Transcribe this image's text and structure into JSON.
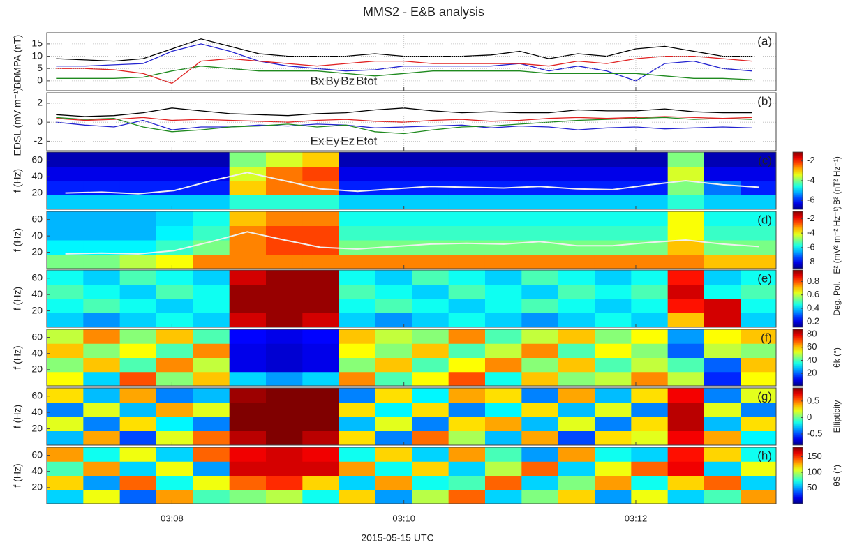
{
  "chart_data": [
    {
      "type": "line",
      "title": "MMS2 - E&B analysis",
      "panel_label": "(a)",
      "ylabel": "BDMPA (nT)",
      "xlim": [
        6.92,
        13.21
      ],
      "xticks": [
        8,
        10,
        12
      ],
      "ylim": [
        -4,
        19.5
      ],
      "yticks": [
        0,
        5,
        10,
        15
      ],
      "grid": true,
      "legend": "lower center",
      "x": [
        7,
        7.25,
        7.5,
        7.75,
        8,
        8.25,
        8.5,
        8.75,
        9,
        9.25,
        9.5,
        9.75,
        10,
        10.25,
        10.5,
        10.75,
        11,
        11.25,
        11.5,
        11.75,
        12,
        12.25,
        12.5,
        12.75,
        13
      ],
      "series": [
        {
          "name": "Bx",
          "color": "#2323d0",
          "values": [
            6,
            6,
            6.5,
            7,
            12,
            15,
            12,
            8,
            6,
            5,
            4,
            4.5,
            6,
            6,
            6,
            6,
            7,
            4,
            6,
            4,
            0,
            7,
            8,
            5,
            4
          ]
        },
        {
          "name": "By",
          "color": "#1f8a1f",
          "values": [
            1,
            1,
            1,
            1.5,
            4,
            6,
            5,
            4,
            4,
            4,
            3,
            2,
            3,
            4,
            4,
            4,
            4,
            3,
            3,
            3,
            3,
            2,
            1,
            1,
            0.5
          ]
        },
        {
          "name": "Bz",
          "color": "#e02222",
          "values": [
            5,
            5,
            4.5,
            3,
            -1,
            8,
            9,
            8,
            7,
            6,
            7,
            8,
            8,
            7,
            7,
            7,
            7,
            6,
            8,
            7,
            9,
            10,
            10,
            9,
            8
          ]
        },
        {
          "name": "Btot",
          "color": "#000000",
          "values": [
            9,
            8.5,
            8,
            9,
            13,
            17,
            14,
            11,
            10,
            10,
            10,
            11,
            10,
            10,
            10,
            10.5,
            12,
            9,
            11,
            10,
            13,
            14,
            12,
            10,
            10
          ]
        }
      ]
    },
    {
      "type": "line",
      "panel_label": "(b)",
      "ylabel": "EDSL (mV m⁻¹)",
      "xlim": [
        6.92,
        13.21
      ],
      "xticks": [
        8,
        10,
        12
      ],
      "ylim": [
        -3,
        3.1
      ],
      "yticks": [
        -2,
        0,
        2
      ],
      "grid": true,
      "legend": "lower center",
      "x": [
        7,
        7.25,
        7.5,
        7.75,
        8,
        8.25,
        8.5,
        8.75,
        9,
        9.25,
        9.5,
        9.75,
        10,
        10.25,
        10.5,
        10.75,
        11,
        11.25,
        11.5,
        11.75,
        12,
        12.25,
        12.5,
        12.75,
        13
      ],
      "series": [
        {
          "name": "Ex",
          "color": "#2323d0",
          "values": [
            0,
            -0.3,
            -0.5,
            0.2,
            -0.8,
            -0.5,
            -0.5,
            -0.3,
            -0.4,
            -0.2,
            -0.3,
            -0.6,
            -0.5,
            -0.4,
            -0.3,
            -0.6,
            -0.4,
            -0.5,
            -0.8,
            -0.6,
            -0.5,
            -0.7,
            -0.6,
            -0.5,
            -0.6
          ]
        },
        {
          "name": "Ey",
          "color": "#1f8a1f",
          "values": [
            0.5,
            0.3,
            0.4,
            -0.5,
            -1,
            -0.8,
            -0.5,
            -0.4,
            -0.2,
            -0.5,
            -0.3,
            -1,
            -1.2,
            -0.8,
            -0.5,
            -0.4,
            -0.2,
            0,
            0.2,
            0.3,
            0.4,
            0.5,
            0.3,
            0.4,
            0.3
          ]
        },
        {
          "name": "Ez",
          "color": "#e02222",
          "values": [
            0.4,
            0.2,
            0.3,
            0.5,
            0.2,
            0.3,
            0.2,
            0.1,
            0,
            0.2,
            0.3,
            0.1,
            0,
            0.2,
            0.3,
            0.1,
            0.2,
            0.4,
            0.5,
            0.4,
            0.5,
            0.6,
            0.5,
            0.4,
            0.5
          ]
        },
        {
          "name": "Etot",
          "color": "#000000",
          "values": [
            0.8,
            0.6,
            0.7,
            1,
            1.5,
            1.2,
            0.9,
            0.8,
            0.7,
            0.9,
            1,
            1.3,
            1.5,
            1.2,
            1,
            1.1,
            1,
            1,
            1.3,
            1.2,
            1.2,
            1.4,
            1.1,
            1,
            1
          ]
        }
      ]
    },
    {
      "type": "heatmap",
      "panel_label": "(c)",
      "ylabel": "f (Hz)",
      "clabel": "B² (nT² Hz⁻¹)",
      "colormap": "jet",
      "xlim": [
        6.92,
        13.21
      ],
      "xticks": [
        8,
        10,
        12
      ],
      "ylim": [
        0,
        70
      ],
      "yticks": [
        20,
        40,
        60
      ],
      "clim": [
        -6.9,
        -1.1
      ],
      "cticks": [
        -6,
        -4,
        -2
      ],
      "x": [
        7.08,
        7.39,
        7.71,
        8.02,
        8.34,
        8.65,
        8.97,
        9.28,
        9.6,
        9.91,
        10.23,
        10.54,
        10.86,
        11.17,
        11.49,
        11.8,
        12.12,
        12.43,
        12.75,
        13.06
      ],
      "y": [
        8.75,
        26.25,
        43.75,
        61.25
      ],
      "z": [
        [
          -5,
          -5,
          -5,
          -5,
          -5,
          -4.5,
          -4.5,
          -4.5,
          -5,
          -5,
          -5,
          -5,
          -5,
          -5,
          -5,
          -5,
          -5,
          -4.5,
          -5,
          -5
        ],
        [
          -6,
          -6,
          -6,
          -6,
          -6,
          -3,
          -2.5,
          -2.5,
          -6,
          -6,
          -6,
          -6,
          -6,
          -6,
          -6,
          -6,
          -6,
          -4,
          -5.5,
          -6
        ],
        [
          -6.3,
          -6.3,
          -6.3,
          -6.3,
          -6.3,
          -3.5,
          -2.5,
          -2.2,
          -6.3,
          -6.3,
          -6.3,
          -6.3,
          -6.3,
          -6.3,
          -6.3,
          -6.3,
          -6.3,
          -3.5,
          -6.3,
          -6.3
        ],
        [
          -6.6,
          -6.6,
          -6.6,
          -6.6,
          -6.6,
          -4,
          -3.5,
          -3,
          -6.6,
          -6.6,
          -6.6,
          -6.6,
          -6.6,
          -6.6,
          -6.6,
          -6.6,
          -6.6,
          -4,
          -6.6,
          -6.6
        ]
      ],
      "line": {
        "color": "#f0f0f0",
        "values": [
          20,
          21,
          19,
          23,
          35,
          45,
          35,
          25,
          22,
          25,
          28,
          27,
          26,
          28,
          25,
          24,
          30,
          35,
          30,
          27
        ]
      }
    },
    {
      "type": "heatmap",
      "panel_label": "(d)",
      "ylabel": "f (Hz)",
      "clabel": "E² (mV² m⁻² Hz⁻¹)",
      "colormap": "jet",
      "xlim": [
        6.92,
        13.21
      ],
      "xticks": [
        8,
        10,
        12
      ],
      "ylim": [
        0,
        70
      ],
      "yticks": [
        20,
        40,
        60
      ],
      "clim": [
        -8.9,
        -1
      ],
      "cticks": [
        -8,
        -6,
        -4,
        -2
      ],
      "x": [
        7.08,
        7.39,
        7.71,
        8.02,
        8.34,
        8.65,
        8.97,
        9.28,
        9.6,
        9.91,
        10.23,
        10.54,
        10.86,
        11.17,
        11.49,
        11.8,
        12.12,
        12.43,
        12.75,
        13.06
      ],
      "y": [
        8.75,
        26.25,
        43.75,
        61.25
      ],
      "z": [
        [
          -5,
          -5,
          -4.5,
          -4,
          -3,
          -3,
          -3,
          -3,
          -3,
          -3,
          -3,
          -3,
          -3,
          -3,
          -3,
          -3,
          -3,
          -3,
          -3.5,
          -3.5
        ],
        [
          -6,
          -6,
          -6,
          -5.5,
          -5,
          -3,
          -2.5,
          -2.5,
          -5,
          -5,
          -5,
          -5,
          -5,
          -5,
          -5,
          -5,
          -5,
          -3.5,
          -5,
          -5
        ],
        [
          -6.5,
          -6.5,
          -6.5,
          -6,
          -5.5,
          -3,
          -2.5,
          -2.5,
          -5.5,
          -5.5,
          -5.5,
          -5.5,
          -5.5,
          -5.5,
          -5.5,
          -5.5,
          -5.5,
          -4,
          -5.5,
          -5.5
        ],
        [
          -6.5,
          -6.5,
          -6.5,
          -6.2,
          -5.8,
          -3.5,
          -3,
          -3,
          -5.8,
          -5.8,
          -5.8,
          -5.8,
          -5.8,
          -5.8,
          -5.8,
          -5.8,
          -5.8,
          -4,
          -5.8,
          -5.8
        ]
      ],
      "line": {
        "color": "#f0f0f0",
        "values": [
          18,
          19,
          18,
          22,
          33,
          45,
          35,
          26,
          24,
          27,
          30,
          31,
          30,
          33,
          28,
          28,
          32,
          35,
          30,
          27
        ]
      }
    },
    {
      "type": "heatmap",
      "panel_label": "(e)",
      "ylabel": "f (Hz)",
      "clabel": "Deg. Pol.",
      "colormap": "jet",
      "xlim": [
        6.92,
        13.21
      ],
      "xticks": [
        8,
        10,
        12
      ],
      "ylim": [
        0,
        70
      ],
      "yticks": [
        20,
        40,
        60
      ],
      "clim": [
        0.12,
        0.97
      ],
      "cticks": [
        0.2,
        0.4,
        0.6,
        0.8
      ],
      "x": [
        7.08,
        7.39,
        7.71,
        8.02,
        8.34,
        8.65,
        8.97,
        9.28,
        9.6,
        9.91,
        10.23,
        10.54,
        10.86,
        11.17,
        11.49,
        11.8,
        12.12,
        12.43,
        12.75,
        13.06
      ],
      "y": [
        8.75,
        26.25,
        43.75,
        61.25
      ],
      "z": [
        [
          0.4,
          0.35,
          0.4,
          0.45,
          0.4,
          0.9,
          0.95,
          0.9,
          0.4,
          0.35,
          0.4,
          0.45,
          0.4,
          0.35,
          0.4,
          0.45,
          0.4,
          0.7,
          0.9,
          0.4
        ],
        [
          0.45,
          0.5,
          0.45,
          0.4,
          0.45,
          0.95,
          0.95,
          0.95,
          0.45,
          0.5,
          0.45,
          0.4,
          0.45,
          0.5,
          0.45,
          0.4,
          0.45,
          0.85,
          0.9,
          0.45
        ],
        [
          0.5,
          0.45,
          0.4,
          0.5,
          0.45,
          0.95,
          0.95,
          0.95,
          0.5,
          0.45,
          0.4,
          0.5,
          0.45,
          0.4,
          0.5,
          0.45,
          0.5,
          0.9,
          0.45,
          0.5
        ],
        [
          0.45,
          0.4,
          0.5,
          0.45,
          0.4,
          0.9,
          0.95,
          0.95,
          0.45,
          0.4,
          0.5,
          0.45,
          0.4,
          0.5,
          0.45,
          0.4,
          0.45,
          0.85,
          0.4,
          0.45
        ]
      ]
    },
    {
      "type": "heatmap",
      "panel_label": "(f)",
      "ylabel": "f (Hz)",
      "clabel": "θk (°)",
      "colormap": "jet",
      "xlim": [
        6.92,
        13.21
      ],
      "xticks": [
        8,
        10,
        12
      ],
      "ylim": [
        0,
        70
      ],
      "yticks": [
        20,
        40,
        60
      ],
      "clim": [
        1,
        87.5
      ],
      "cticks": [
        20,
        40,
        60,
        80
      ],
      "x": [
        7.08,
        7.39,
        7.71,
        8.02,
        8.34,
        8.65,
        8.97,
        9.28,
        9.6,
        9.91,
        10.23,
        10.54,
        10.86,
        11.17,
        11.49,
        11.8,
        12.12,
        12.43,
        12.75,
        13.06
      ],
      "y": [
        8.75,
        26.25,
        43.75,
        61.25
      ],
      "z": [
        [
          55,
          30,
          70,
          45,
          60,
          30,
          25,
          30,
          65,
          40,
          55,
          70,
          35,
          60,
          45,
          50,
          65,
          50,
          15,
          55
        ],
        [
          45,
          60,
          40,
          65,
          50,
          10,
          8,
          10,
          45,
          60,
          40,
          55,
          65,
          45,
          60,
          40,
          50,
          40,
          20,
          60
        ],
        [
          60,
          45,
          55,
          40,
          65,
          10,
          8,
          10,
          55,
          45,
          60,
          40,
          50,
          65,
          40,
          55,
          45,
          20,
          50,
          45
        ],
        [
          50,
          65,
          45,
          60,
          40,
          12,
          10,
          12,
          60,
          50,
          45,
          65,
          40,
          50,
          60,
          45,
          55,
          25,
          55,
          60
        ]
      ]
    },
    {
      "type": "heatmap",
      "panel_label": "(g)",
      "ylabel": "f (Hz)",
      "clabel": "Ellipticity",
      "colormap": "jet",
      "xlim": [
        6.92,
        13.21
      ],
      "xticks": [
        8,
        10,
        12
      ],
      "ylim": [
        0,
        70
      ],
      "yticks": [
        20,
        40,
        60
      ],
      "clim": [
        -0.84,
        0.9
      ],
      "cticks": [
        -0.5,
        0,
        0.5
      ],
      "x": [
        7.08,
        7.39,
        7.71,
        8.02,
        8.34,
        8.65,
        8.97,
        9.28,
        9.6,
        9.91,
        10.23,
        10.54,
        10.86,
        11.17,
        11.49,
        11.8,
        12.12,
        12.43,
        12.75,
        13.06
      ],
      "y": [
        8.75,
        26.25,
        43.75,
        61.25
      ],
      "z": [
        [
          -0.3,
          0.4,
          -0.5,
          0.2,
          0.5,
          0.8,
          0.9,
          0.8,
          0.3,
          -0.4,
          0.5,
          0.1,
          -0.3,
          0.4,
          -0.5,
          0.3,
          0.2,
          0.7,
          0.4,
          -0.2
        ],
        [
          0.2,
          -0.4,
          0.3,
          -0.2,
          -0.4,
          0.9,
          0.9,
          0.9,
          -0.3,
          0.2,
          -0.4,
          0.3,
          0.4,
          -0.3,
          0.2,
          -0.4,
          0.3,
          0.8,
          -0.3,
          0.3
        ],
        [
          -0.4,
          0.2,
          -0.3,
          0.4,
          0.2,
          0.9,
          0.9,
          0.9,
          0.3,
          -0.2,
          0.3,
          -0.4,
          -0.2,
          0.3,
          -0.3,
          0.2,
          -0.4,
          0.8,
          0.2,
          -0.4
        ],
        [
          0.3,
          -0.3,
          0.4,
          -0.4,
          -0.3,
          0.85,
          0.9,
          0.9,
          -0.4,
          0.3,
          -0.2,
          0.4,
          0.3,
          -0.4,
          0.4,
          -0.3,
          0.3,
          0.7,
          -0.4,
          0.2
        ]
      ]
    },
    {
      "type": "heatmap",
      "panel_label": "(h)",
      "ylabel": "f (Hz)",
      "clabel": "θS (°)",
      "colormap": "jet",
      "xlabel": "2015-05-15 UTC",
      "xlim": [
        6.92,
        13.21
      ],
      "xticks": [
        {
          "value": 8,
          "label": "03:08"
        },
        {
          "value": 10,
          "label": "03:10"
        },
        {
          "value": 12,
          "label": "03:12"
        }
      ],
      "ylim": [
        0,
        70
      ],
      "yticks": [
        20,
        40,
        60
      ],
      "clim": [
        0,
        180
      ],
      "cticks": [
        50,
        100,
        150
      ],
      "x": [
        7.08,
        7.39,
        7.71,
        8.02,
        8.34,
        8.65,
        8.97,
        9.28,
        9.6,
        9.91,
        10.23,
        10.54,
        10.86,
        11.17,
        11.49,
        11.8,
        12.12,
        12.43,
        12.75,
        13.06
      ],
      "y": [
        8.75,
        26.25,
        43.75,
        61.25
      ],
      "z": [
        [
          60,
          110,
          40,
          130,
          80,
          90,
          100,
          70,
          120,
          50,
          100,
          140,
          60,
          90,
          120,
          50,
          110,
          60,
          80,
          130
        ],
        [
          120,
          50,
          140,
          70,
          110,
          140,
          150,
          120,
          60,
          130,
          70,
          80,
          140,
          60,
          90,
          130,
          70,
          120,
          140,
          60
        ],
        [
          80,
          130,
          60,
          110,
          50,
          165,
          165,
          165,
          130,
          70,
          120,
          60,
          100,
          140,
          60,
          110,
          140,
          160,
          60,
          110
        ],
        [
          130,
          70,
          110,
          60,
          140,
          160,
          165,
          160,
          70,
          120,
          60,
          130,
          80,
          50,
          130,
          70,
          60,
          155,
          120,
          70
        ]
      ]
    }
  ]
}
